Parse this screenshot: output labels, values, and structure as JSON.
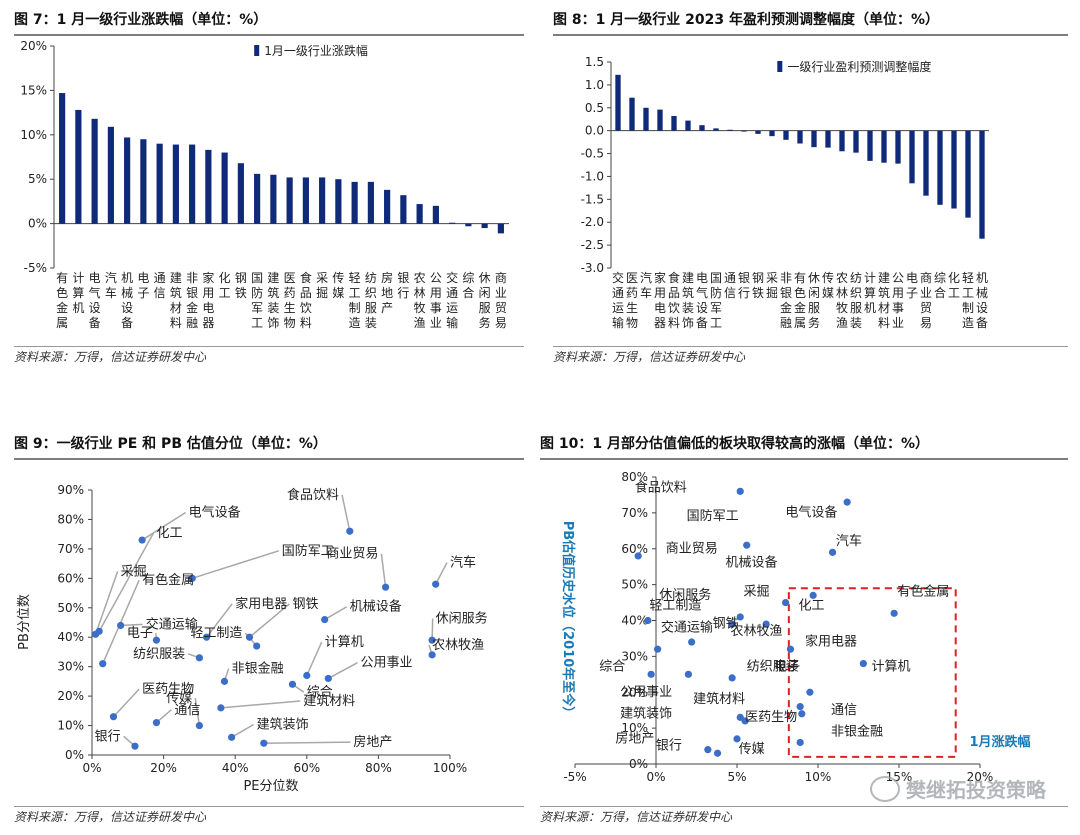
{
  "colors": {
    "bar": "#0e2a78",
    "dot": "#3a6ec8",
    "line": "#a8a8a8",
    "box": "#e02020",
    "axis_title": "#1a7ab6"
  },
  "source": "资料来源：万得，信达证券研发中心",
  "watermark": "樊继拓投资策略",
  "chart_data": [
    {
      "type": "bar",
      "title": "图 7：1 月一级行业涨跌幅（单位：%）",
      "legend": "1月一级行业涨跌幅",
      "legend_position": "top-right",
      "ylim": [
        -5,
        20
      ],
      "yticks": [
        "-5%",
        "0%",
        "5%",
        "10%",
        "15%",
        "20%"
      ],
      "categories": [
        "有色金属",
        "计算机",
        "电气设备",
        "汽车",
        "机械设备",
        "电子",
        "通信",
        "建筑材料",
        "非银金融",
        "家用电器",
        "化工",
        "钢铁",
        "国防军工",
        "建筑装饰",
        "医药生物",
        "食品饮料",
        "采掘",
        "传媒",
        "轻工制造",
        "纺织服装",
        "房地产",
        "银行",
        "农林牧渔",
        "公用事业",
        "交通运输",
        "综合",
        "休闲服务",
        "商业贸易"
      ],
      "values": [
        14.7,
        12.8,
        11.8,
        10.9,
        9.7,
        9.5,
        9.0,
        8.9,
        8.9,
        8.3,
        8.0,
        6.8,
        5.6,
        5.5,
        5.2,
        5.2,
        5.2,
        5.0,
        4.7,
        4.7,
        3.8,
        3.2,
        2.2,
        2.0,
        0.1,
        -0.3,
        -0.5,
        -1.1
      ]
    },
    {
      "type": "bar",
      "title": "图 8：1 月一级行业 2023 年盈利预测调整幅度（单位：%）",
      "legend": "一级行业盈利预测调整幅度",
      "legend_position": "top-right",
      "ylim": [
        -3.0,
        1.5
      ],
      "yticks": [
        "-3.0",
        "-2.5",
        "-2.0",
        "-1.5",
        "-1.0",
        "-0.5",
        "0.0",
        "0.5",
        "1.0",
        "1.5"
      ],
      "categories": [
        "交通运输",
        "医药生物",
        "汽车",
        "家用电器",
        "食品饮料",
        "建筑装饰",
        "电气设备",
        "国防军工",
        "通信",
        "银行",
        "钢铁",
        "采掘",
        "非银金融",
        "有色金属",
        "休闲服务",
        "传媒",
        "农林牧渔",
        "纺织服装",
        "计算机",
        "建筑材料",
        "公用事业",
        "电子",
        "商业贸易",
        "综合",
        "化工",
        "轻工制造",
        "机械设备"
      ],
      "values": [
        1.22,
        0.72,
        0.5,
        0.46,
        0.32,
        0.22,
        0.12,
        0.05,
        0.02,
        -0.02,
        -0.07,
        -0.12,
        -0.2,
        -0.28,
        -0.36,
        -0.37,
        -0.45,
        -0.48,
        -0.66,
        -0.7,
        -0.72,
        -1.15,
        -1.42,
        -1.62,
        -1.7,
        -1.9,
        -2.36
      ]
    },
    {
      "type": "scatter",
      "title": "图 9：一级行业 PE 和 PB 估值分位（单位：%）",
      "xlabel": "PE分位数",
      "ylabel": "PB分位数",
      "xlim": [
        0,
        100
      ],
      "ylim": [
        0,
        90
      ],
      "xticks": [
        "0%",
        "20%",
        "40%",
        "60%",
        "80%",
        "100%"
      ],
      "yticks": [
        "0%",
        "10%",
        "20%",
        "30%",
        "40%",
        "50%",
        "60%",
        "70%",
        "80%",
        "90%"
      ],
      "points": [
        {
          "name": "电气设备",
          "x": 14,
          "y": 73,
          "lx": 27,
          "ly": 81
        },
        {
          "name": "化工",
          "x": 2,
          "y": 42,
          "lx": 18,
          "ly": 74
        },
        {
          "name": "食品饮料",
          "x": 72,
          "y": 76,
          "lx": 69,
          "ly": 87
        },
        {
          "name": "国防军工",
          "x": 28,
          "y": 60,
          "lx": 53,
          "ly": 68
        },
        {
          "name": "采掘",
          "x": 1,
          "y": 41,
          "lx": 8,
          "ly": 61
        },
        {
          "name": "有色金属",
          "x": 3,
          "y": 31,
          "lx": 14,
          "ly": 58
        },
        {
          "name": "商业贸易",
          "x": 82,
          "y": 57,
          "lx": 80,
          "ly": 67
        },
        {
          "name": "汽车",
          "x": 96,
          "y": 58,
          "lx": 100,
          "ly": 64
        },
        {
          "name": "交通运输",
          "x": 8,
          "y": 44,
          "lx": 15,
          "ly": 43
        },
        {
          "name": "家用电器",
          "x": 32,
          "y": 40,
          "lx": 40,
          "ly": 50
        },
        {
          "name": "钢铁",
          "x": 44,
          "y": 40,
          "lx": 56,
          "ly": 50
        },
        {
          "name": "机械设备",
          "x": 65,
          "y": 46,
          "lx": 72,
          "ly": 49
        },
        {
          "name": "电子",
          "x": 18,
          "y": 39,
          "lx": 17,
          "ly": 40
        },
        {
          "name": "轻工制造",
          "x": 46,
          "y": 37,
          "lx": 42,
          "ly": 40
        },
        {
          "name": "休闲服务",
          "x": 95,
          "y": 39,
          "lx": 96,
          "ly": 45
        },
        {
          "name": "农林牧渔",
          "x": 95,
          "y": 34,
          "lx": 95,
          "ly": 36
        },
        {
          "name": "计算机",
          "x": 60,
          "y": 27,
          "lx": 65,
          "ly": 37
        },
        {
          "name": "纺织服装",
          "x": 30,
          "y": 33,
          "lx": 26,
          "ly": 33
        },
        {
          "name": "非银金融",
          "x": 37,
          "y": 25,
          "lx": 39,
          "ly": 28
        },
        {
          "name": "公用事业",
          "x": 66,
          "y": 26,
          "lx": 75,
          "ly": 30
        },
        {
          "name": "医药生物",
          "x": 6,
          "y": 13,
          "lx": 14,
          "ly": 21
        },
        {
          "name": "传媒",
          "x": 30,
          "y": 10,
          "lx": 28,
          "ly": 18
        },
        {
          "name": "综合",
          "x": 56,
          "y": 24,
          "lx": 60,
          "ly": 20
        },
        {
          "name": "建筑材料",
          "x": 36,
          "y": 16,
          "lx": 59,
          "ly": 17
        },
        {
          "name": "通信",
          "x": 18,
          "y": 11,
          "lx": 23,
          "ly": 14
        },
        {
          "name": "建筑装饰",
          "x": 39,
          "y": 6,
          "lx": 46,
          "ly": 9
        },
        {
          "name": "银行",
          "x": 12,
          "y": 3,
          "lx": 8,
          "ly": 5
        },
        {
          "name": "房地产",
          "x": 48,
          "y": 4,
          "lx": 73,
          "ly": 3
        }
      ]
    },
    {
      "type": "scatter",
      "title": "图 10：1 月部分估值偏低的板块取得较高的涨幅（单位：%）",
      "ylabel": "PB估值历史水位（2010年至今）",
      "xlabel": "1月涨跌幅",
      "xlim": [
        -5,
        20
      ],
      "ylim": [
        0,
        80
      ],
      "xticks": [
        "-5%",
        "0%",
        "5%",
        "10%",
        "15%",
        "20%"
      ],
      "yticks": [
        "0%",
        "10%",
        "20%",
        "30%",
        "40%",
        "50%",
        "60%",
        "70%",
        "80%"
      ],
      "highlight_box": {
        "x": [
          8.2,
          18.5
        ],
        "y": [
          2,
          49
        ]
      },
      "points": [
        {
          "name": "食品饮料",
          "x": 5.2,
          "y": 76,
          "lx": 1.9,
          "ly": 76
        },
        {
          "name": "电气设备",
          "x": 11.8,
          "y": 73,
          "lx": 11.2,
          "ly": 69
        },
        {
          "name": "国防军工",
          "x": 5.6,
          "y": 61,
          "lx": 5.1,
          "ly": 68
        },
        {
          "name": "汽车",
          "x": 10.9,
          "y": 59,
          "lx": 11.1,
          "ly": 61
        },
        {
          "name": "商业贸易",
          "x": -1.1,
          "y": 58,
          "lx": 0.6,
          "ly": 59
        },
        {
          "name": "机械设备",
          "x": 9.7,
          "y": 47,
          "lx": 7.5,
          "ly": 55
        },
        {
          "name": "有色金属",
          "x": 14.7,
          "y": 42,
          "lx": 14.9,
          "ly": 47
        },
        {
          "name": "休闲服务",
          "x": -0.5,
          "y": 40,
          "lx": 0.2,
          "ly": 46
        },
        {
          "name": "采掘",
          "x": 5.2,
          "y": 41,
          "lx": 5.4,
          "ly": 47
        },
        {
          "name": "化工",
          "x": 8.0,
          "y": 45,
          "lx": 8.8,
          "ly": 43
        },
        {
          "name": "轻工制造",
          "x": 4.7,
          "y": 39,
          "lx": 2.8,
          "ly": 43
        },
        {
          "name": "钢铁",
          "x": 6.8,
          "y": 39,
          "lx": 5.1,
          "ly": 38
        },
        {
          "name": "交通运输",
          "x": 0.1,
          "y": 32,
          "lx": 0.3,
          "ly": 37
        },
        {
          "name": "农林牧渔",
          "x": 2.2,
          "y": 34,
          "lx": 4.6,
          "ly": 36
        },
        {
          "name": "家用电器",
          "x": 8.3,
          "y": 32,
          "lx": 9.2,
          "ly": 33
        },
        {
          "name": "计算机",
          "x": 12.8,
          "y": 28,
          "lx": 13.3,
          "ly": 26
        },
        {
          "name": "纺织服装",
          "x": 4.7,
          "y": 24,
          "lx": 5.6,
          "ly": 26
        },
        {
          "name": "电子",
          "x": 9.5,
          "y": 20,
          "lx": 8.9,
          "ly": 26
        },
        {
          "name": "综合",
          "x": -0.3,
          "y": 25,
          "lx": -1.9,
          "ly": 26
        },
        {
          "name": "公用事业",
          "x": 2.0,
          "y": 25,
          "lx": 1.0,
          "ly": 19
        },
        {
          "name": "建筑材料",
          "x": 8.9,
          "y": 16,
          "lx": 5.5,
          "ly": 17
        },
        {
          "name": "通信",
          "x": 9.0,
          "y": 14,
          "lx": 10.8,
          "ly": 14
        },
        {
          "name": "建筑装饰",
          "x": 5.5,
          "y": 12,
          "lx": 1.0,
          "ly": 13
        },
        {
          "name": "医药生物",
          "x": 5.2,
          "y": 13,
          "lx": 5.5,
          "ly": 12
        },
        {
          "name": "非银金融",
          "x": 8.9,
          "y": 6,
          "lx": 10.8,
          "ly": 8
        },
        {
          "name": "房地产",
          "x": 3.8,
          "y": 3,
          "lx": -0.1,
          "ly": 6
        },
        {
          "name": "银行",
          "x": 3.2,
          "y": 4,
          "lx": 1.6,
          "ly": 4
        },
        {
          "name": "传媒",
          "x": 5.0,
          "y": 7,
          "lx": 5.1,
          "ly": 3
        }
      ]
    }
  ]
}
